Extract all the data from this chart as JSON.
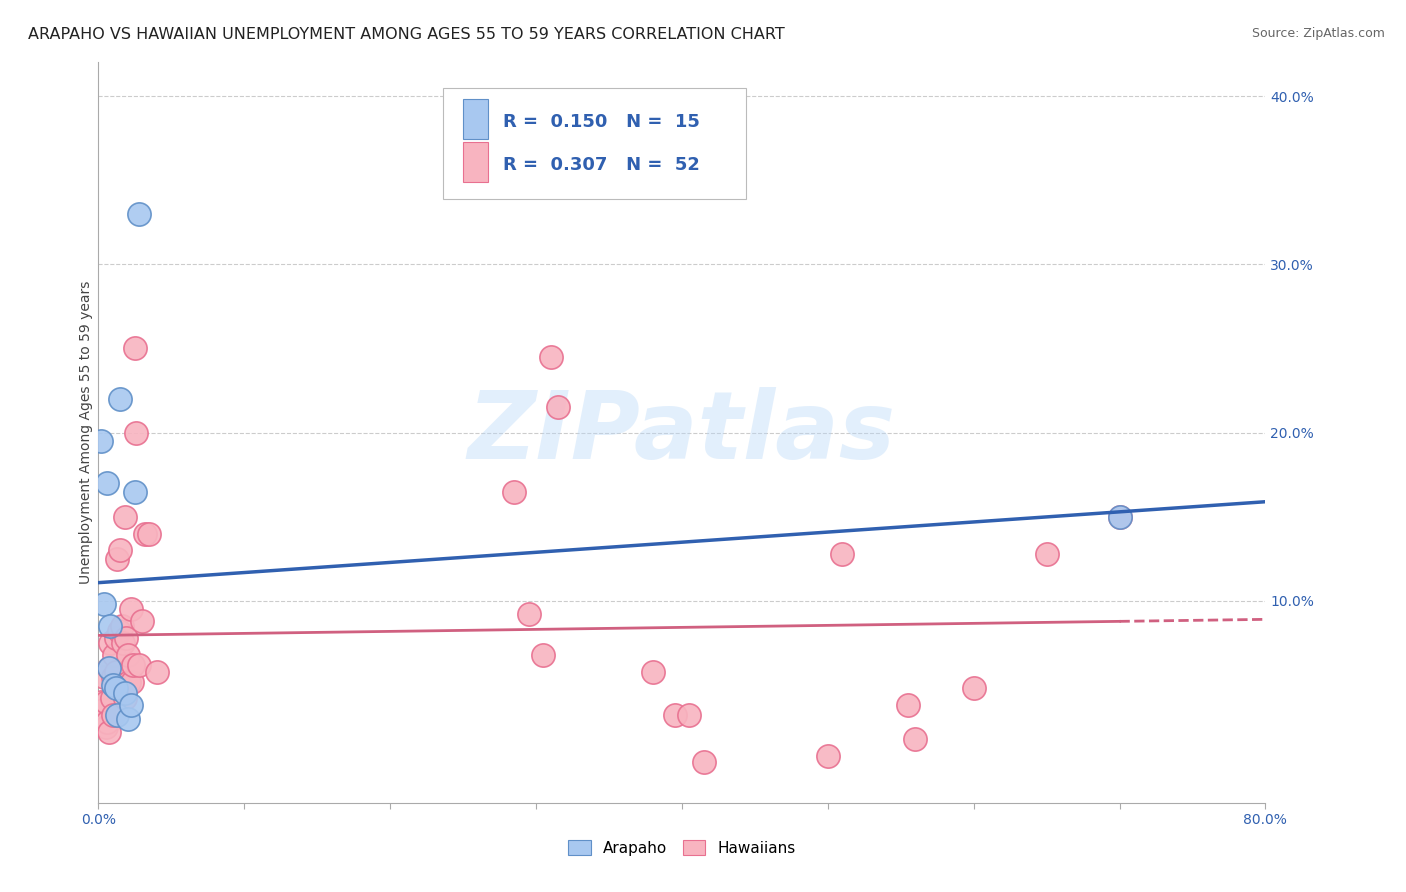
{
  "title": "ARAPAHO VS HAWAIIAN UNEMPLOYMENT AMONG AGES 55 TO 59 YEARS CORRELATION CHART",
  "source": "Source: ZipAtlas.com",
  "ylabel": "Unemployment Among Ages 55 to 59 years",
  "xlim": [
    0.0,
    0.8
  ],
  "ylim": [
    -0.02,
    0.42
  ],
  "yticks": [
    0.1,
    0.2,
    0.3,
    0.4
  ],
  "ytick_labels": [
    "10.0%",
    "20.0%",
    "30.0%",
    "40.0%"
  ],
  "xticks": [
    0.0,
    0.1,
    0.2,
    0.3,
    0.4,
    0.5,
    0.6,
    0.7,
    0.8
  ],
  "arapaho_r": 0.15,
  "arapaho_n": 15,
  "hawaiian_r": 0.307,
  "hawaiian_n": 52,
  "arapaho_color": "#a8c8f0",
  "hawaiian_color": "#f8b4c0",
  "arapaho_edge_color": "#6090c8",
  "hawaiian_edge_color": "#e87090",
  "arapaho_line_color": "#3060b0",
  "hawaiian_line_color": "#d06080",
  "legend_text_color": "#3060b0",
  "background_color": "#ffffff",
  "grid_color": "#cccccc",
  "arapaho_x": [
    0.002,
    0.004,
    0.006,
    0.007,
    0.008,
    0.01,
    0.012,
    0.013,
    0.015,
    0.018,
    0.02,
    0.022,
    0.025,
    0.028,
    0.7
  ],
  "arapaho_y": [
    0.195,
    0.098,
    0.17,
    0.06,
    0.085,
    0.05,
    0.048,
    0.032,
    0.22,
    0.045,
    0.03,
    0.038,
    0.165,
    0.33,
    0.15
  ],
  "hawaiian_x": [
    0.002,
    0.003,
    0.004,
    0.005,
    0.005,
    0.006,
    0.007,
    0.007,
    0.008,
    0.009,
    0.01,
    0.01,
    0.011,
    0.012,
    0.012,
    0.013,
    0.014,
    0.015,
    0.015,
    0.016,
    0.017,
    0.018,
    0.018,
    0.019,
    0.02,
    0.021,
    0.022,
    0.023,
    0.024,
    0.025,
    0.026,
    0.028,
    0.03,
    0.032,
    0.035,
    0.04,
    0.285,
    0.295,
    0.305,
    0.31,
    0.315,
    0.38,
    0.395,
    0.405,
    0.415,
    0.5,
    0.51,
    0.555,
    0.56,
    0.6,
    0.65,
    0.7
  ],
  "hawaiian_y": [
    0.04,
    0.035,
    0.055,
    0.04,
    0.025,
    0.028,
    0.06,
    0.022,
    0.075,
    0.042,
    0.055,
    0.032,
    0.068,
    0.058,
    0.078,
    0.125,
    0.082,
    0.05,
    0.13,
    0.085,
    0.075,
    0.15,
    0.042,
    0.078,
    0.068,
    0.052,
    0.095,
    0.052,
    0.062,
    0.25,
    0.2,
    0.062,
    0.088,
    0.14,
    0.14,
    0.058,
    0.165,
    0.092,
    0.068,
    0.245,
    0.215,
    0.058,
    0.032,
    0.032,
    0.004,
    0.008,
    0.128,
    0.038,
    0.018,
    0.048,
    0.128,
    0.15
  ],
  "watermark_text": "ZIPatlas",
  "title_fontsize": 11.5,
  "axis_label_fontsize": 10,
  "tick_fontsize": 10,
  "legend_fontsize": 13
}
